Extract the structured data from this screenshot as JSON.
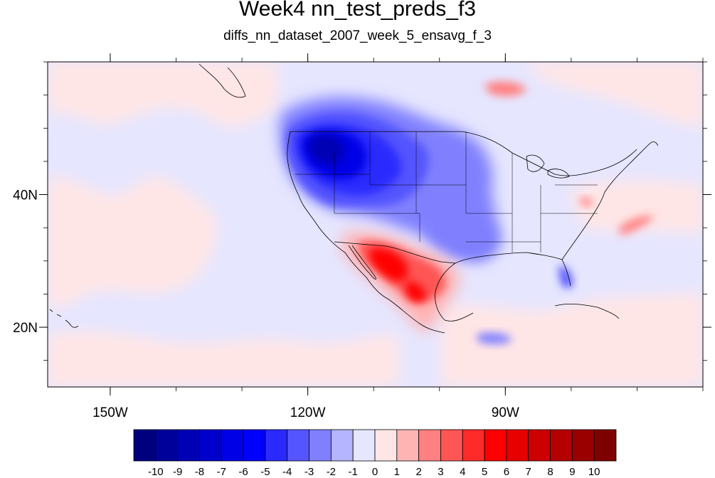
{
  "title": "Week4 nn_test_preds_f3",
  "subtitle": "diffs_nn_dataset_2007_week_5_ensavg_f_3",
  "axes": {
    "lon_ticks": [
      {
        "value": -150,
        "label": "150W"
      },
      {
        "value": -120,
        "label": "120W"
      },
      {
        "value": -90,
        "label": "90W"
      }
    ],
    "lat_ticks": [
      {
        "value": 40,
        "label": "40N"
      },
      {
        "value": 20,
        "label": "20N"
      }
    ],
    "lon_range": [
      -159.5,
      -60
    ],
    "lat_range": [
      11,
      60
    ]
  },
  "colorbar": {
    "levels": [
      "-10",
      "-9",
      "-8",
      "-7",
      "-6",
      "-5",
      "-4",
      "-3",
      "-2",
      "-1",
      "0",
      "1",
      "2",
      "3",
      "4",
      "5",
      "6",
      "7",
      "8",
      "9",
      "10"
    ],
    "colors": [
      "#00007f",
      "#00009a",
      "#0000b4",
      "#0000cc",
      "#0000e6",
      "#0000ff",
      "#2a2aff",
      "#5555ff",
      "#8080ff",
      "#b4b4ff",
      "#e6e6ff",
      "#ffe6e6",
      "#ffb4b4",
      "#ff8080",
      "#ff5555",
      "#ff2a2a",
      "#ff0000",
      "#e60000",
      "#cc0000",
      "#b40000",
      "#9a0000",
      "#7f0000"
    ]
  },
  "colors": {
    "background_neutral": "#e6e6ff",
    "background_warm": "#ffe6e6",
    "coast": "#000000"
  },
  "chart_data": {
    "type": "heatmap",
    "title": "Week4 nn_test_preds_f3",
    "subtitle": "diffs_nn_dataset_2007_week_5_ensavg_f_3",
    "x_range": [
      -159.5,
      -60
    ],
    "y_range": [
      11,
      60
    ],
    "color_scale_range": [
      -10,
      10
    ],
    "regions": [
      {
        "lon": -119.5,
        "lat": 46.5,
        "value": -8
      },
      {
        "lon": -116,
        "lat": 43,
        "value": -6
      },
      {
        "lon": -110,
        "lat": 46,
        "value": -4
      },
      {
        "lon": -112,
        "lat": 38,
        "value": -3
      },
      {
        "lon": -95,
        "lat": 33,
        "value": -2
      },
      {
        "lon": -82,
        "lat": 28,
        "value": -3
      },
      {
        "lon": -108,
        "lat": 28,
        "value": 5
      },
      {
        "lon": -103,
        "lat": 25,
        "value": 4
      },
      {
        "lon": -99,
        "lat": 30,
        "value": 3
      },
      {
        "lon": -85,
        "lat": 35,
        "value": -1
      },
      {
        "lon": -92,
        "lat": 17,
        "value": -2
      },
      {
        "lon": -100,
        "lat": 55,
        "value": -2
      },
      {
        "lon": -87,
        "lat": 56,
        "value": 2
      },
      {
        "lon": -70,
        "lat": 34,
        "value": 1
      }
    ]
  }
}
